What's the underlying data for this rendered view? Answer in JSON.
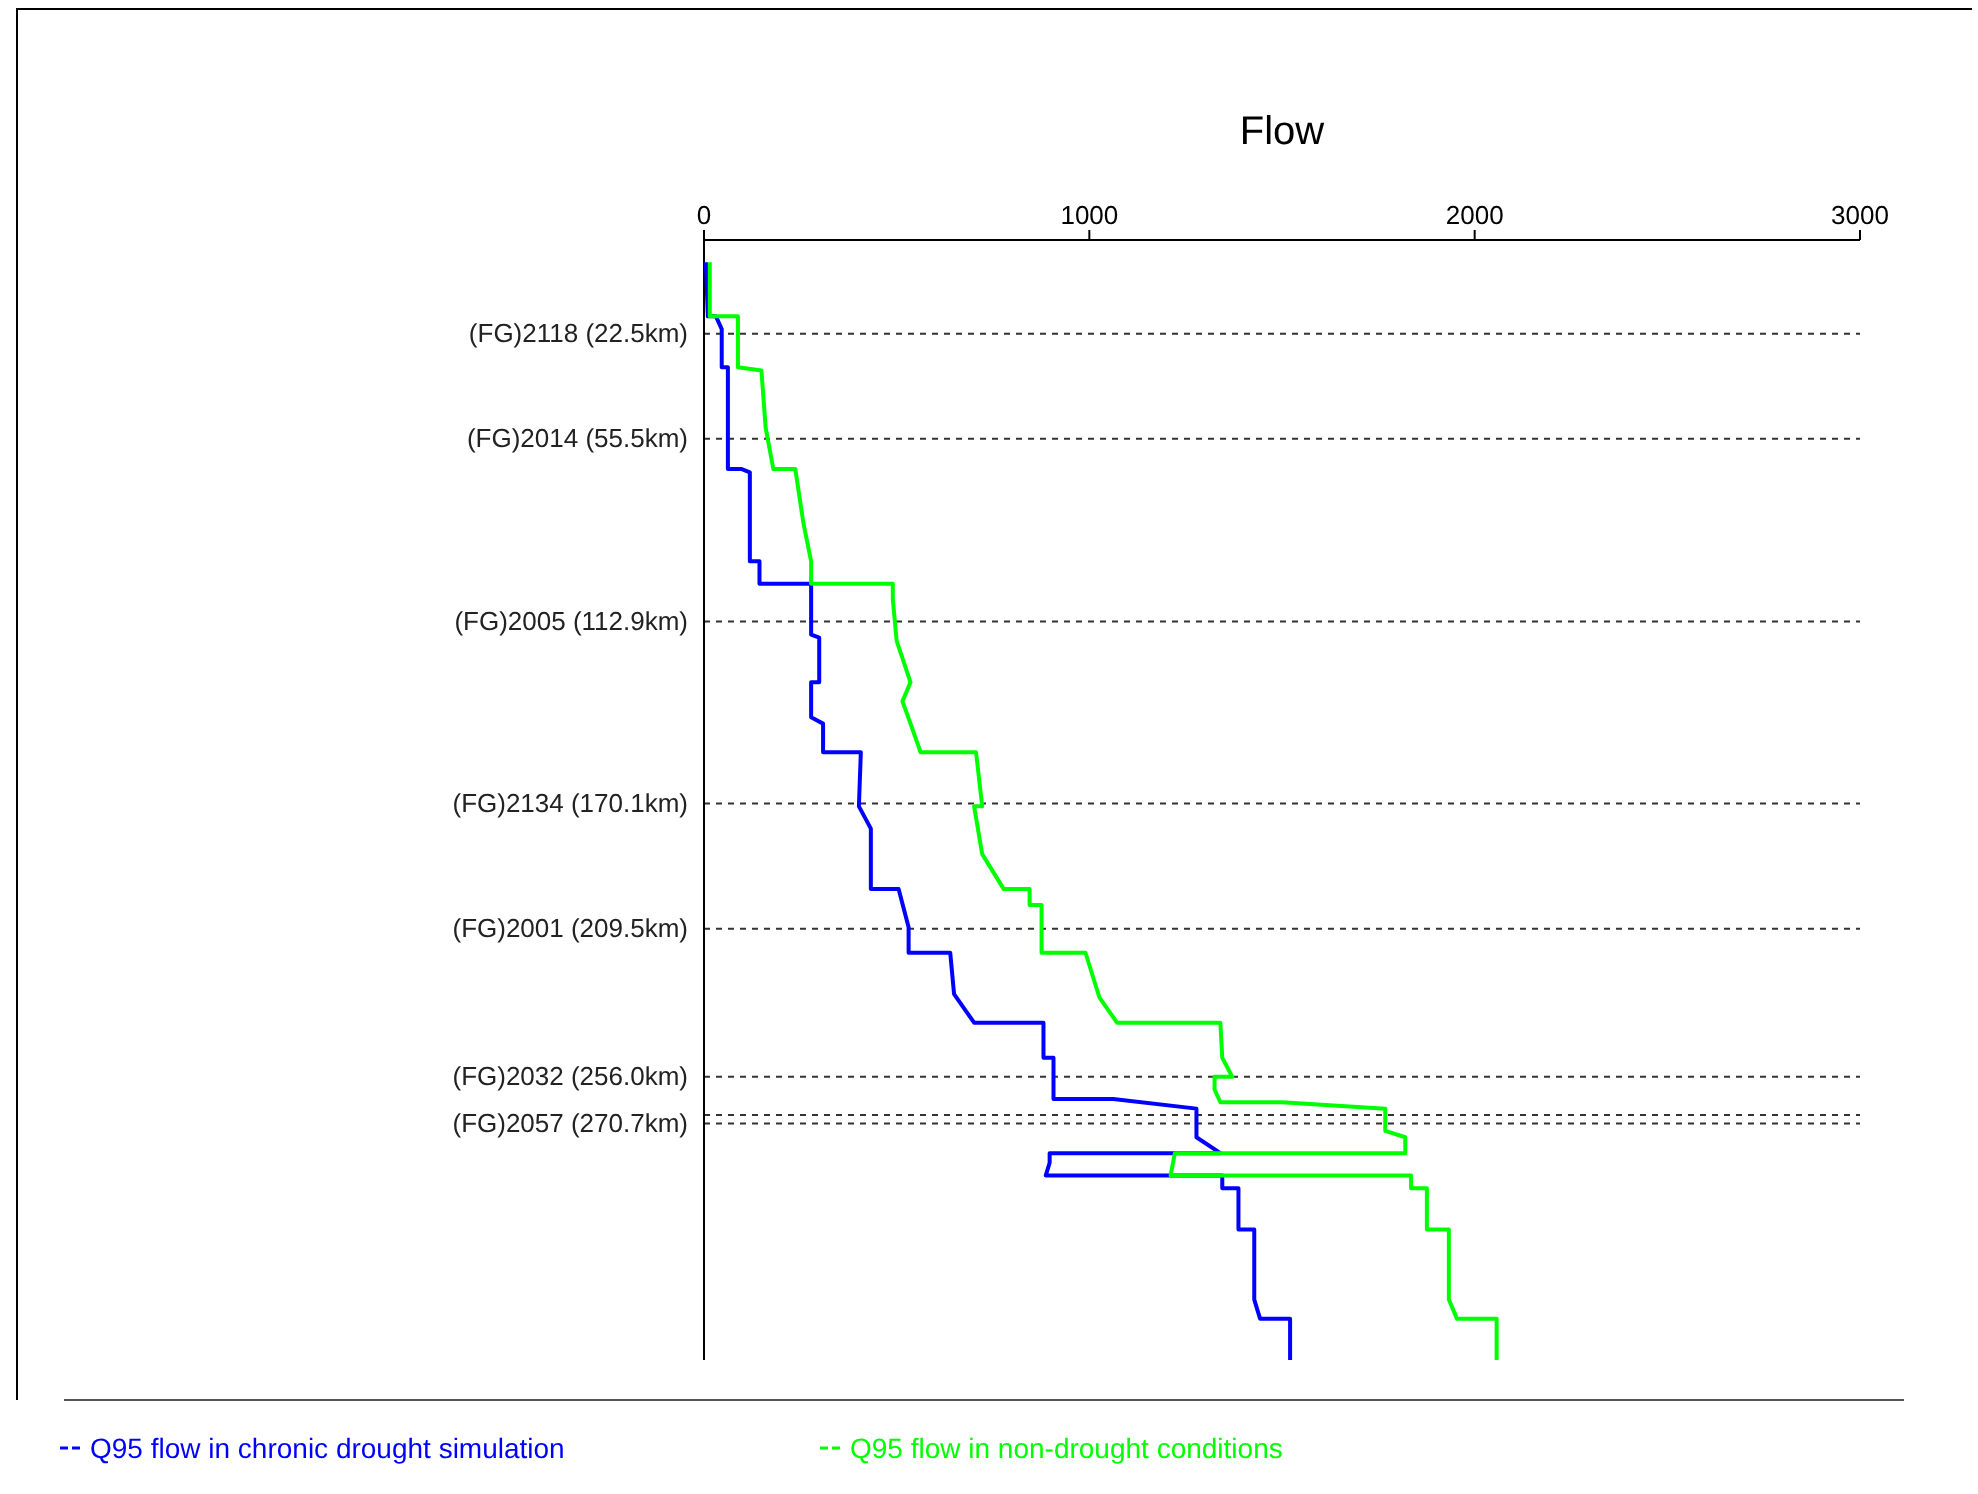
{
  "chart_data": {
    "type": "line",
    "title": "Flow",
    "xlim": [
      0,
      3000
    ],
    "xticks": [
      0,
      1000,
      2000,
      3000
    ],
    "ylim": [
      345,
      -7
    ],
    "tick_labels": "x",
    "ref_lines": [
      {
        "axis": "y",
        "value": 22.5,
        "label": "(FG)2118 (22.5km)",
        "line_style": "dashed"
      },
      {
        "axis": "y",
        "value": 55.5,
        "label": "(FG)2014 (55.5km)",
        "line_style": "dashed"
      },
      {
        "axis": "y",
        "value": 112.9,
        "label": "(FG)2005 (112.9km)",
        "line_style": "dashed"
      },
      {
        "axis": "y",
        "value": 170.1,
        "label": "(FG)2134 (170.1km)",
        "line_style": "dashed"
      },
      {
        "axis": "y",
        "value": 209.5,
        "label": "(FG)2001 (209.5km)",
        "line_style": "dashed"
      },
      {
        "axis": "y",
        "value": 256.0,
        "label": "(FG)2032 (256.0km)",
        "line_style": "dashed"
      },
      {
        "axis": "y",
        "value": 268,
        "label": null,
        "line_style": "dashed"
      },
      {
        "axis": "y",
        "value": 270.7,
        "label": "(FG)2057 (270.7km)",
        "line_style": "dashed"
      }
    ],
    "legend": "bottom",
    "line_style": "solid",
    "marker": "none",
    "series": [
      {
        "name": "Q95 flow in chronic drought simulation",
        "color": "#0000ff",
        "x": [
          5,
          10,
          31,
          46,
          46,
          62,
          62,
          98,
          119,
          119,
          144,
          144,
          278,
          278,
          299,
          299,
          278,
          278,
          309,
          309,
          407,
          402,
          433,
          433,
          505,
          531,
          531,
          639,
          649,
          701,
          881,
          881,
          907,
          907,
          1062,
          1278,
          1278,
          1340,
          897,
          897,
          887,
          1345,
          1345,
          1387,
          1387,
          1428,
          1428,
          1443,
          1521,
          1521
        ],
        "values": [
          0,
          17,
          17,
          21,
          33,
          33,
          65,
          65,
          66,
          94,
          94,
          101,
          101,
          117,
          118,
          132,
          132,
          143,
          145,
          154,
          154,
          171,
          178,
          197,
          197,
          209,
          217,
          217,
          230,
          239,
          239,
          250,
          250,
          263,
          263,
          266,
          275,
          280,
          280,
          283,
          287,
          287,
          291,
          291,
          304,
          304,
          326,
          332,
          332,
          345
        ]
      },
      {
        "name": "Q95 flow in non-drought conditions",
        "color": "#00ff00",
        "x": [
          15,
          15,
          88,
          88,
          149,
          160,
          180,
          237,
          258,
          278,
          278,
          490,
          490,
          500,
          536,
          515,
          536,
          562,
          706,
          722,
          701,
          722,
          778,
          845,
          845,
          876,
          876,
          990,
          1026,
          1072,
          1340,
          1345,
          1371,
          1325,
          1325,
          1340,
          1500,
          1768,
          1768,
          1820,
          1820,
          1222,
          1211,
          1835,
          1835,
          1876,
          1876,
          1933,
          1933,
          1954,
          2057,
          2057
        ],
        "values": [
          0,
          17,
          17,
          33,
          34,
          52,
          65,
          65,
          82,
          94,
          101,
          101,
          106,
          119,
          132,
          138,
          145,
          154,
          154,
          171,
          171,
          186,
          197,
          197,
          202,
          202,
          217,
          217,
          231,
          239,
          239,
          250,
          256,
          256,
          260,
          264,
          264,
          266,
          273,
          275,
          280,
          280,
          287,
          287,
          291,
          291,
          304,
          304,
          326,
          332,
          332,
          345
        ]
      }
    ]
  }
}
